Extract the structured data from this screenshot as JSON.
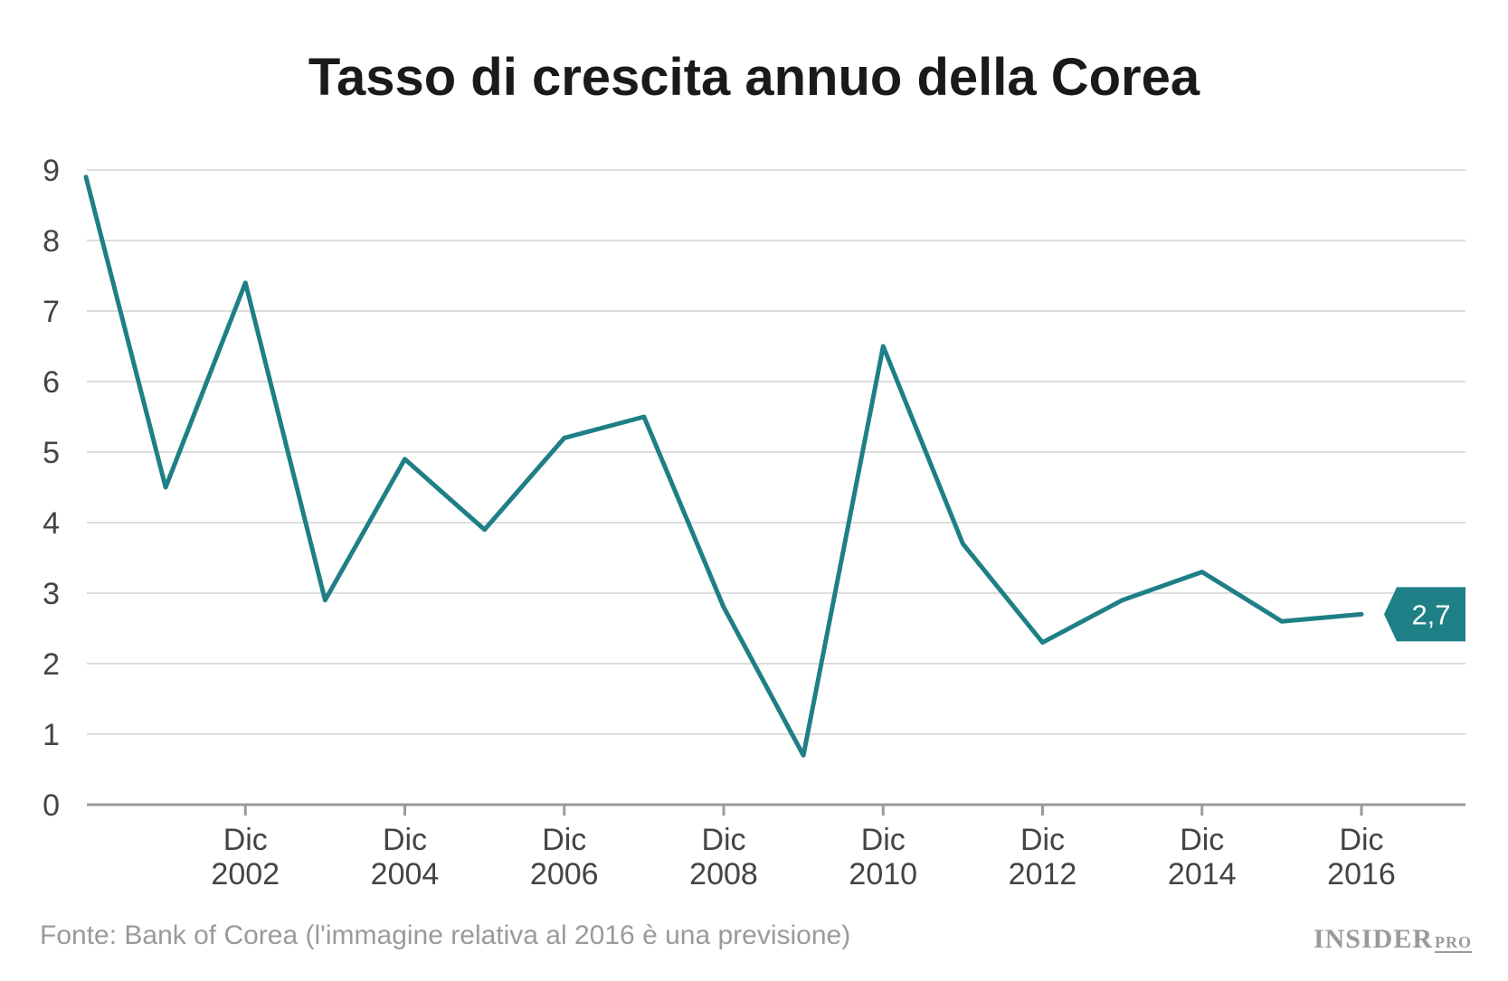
{
  "chart_data": {
    "type": "line",
    "title": "Tasso di crescita annuo della Corea",
    "xlabel": "",
    "ylabel": "",
    "x": [
      2000,
      2001,
      2002,
      2003,
      2004,
      2005,
      2006,
      2007,
      2008,
      2009,
      2010,
      2011,
      2012,
      2013,
      2014,
      2015,
      2016
    ],
    "series": [
      {
        "values": [
          8.9,
          4.5,
          7.4,
          2.9,
          4.9,
          3.9,
          5.2,
          5.5,
          2.8,
          0.7,
          6.5,
          3.7,
          2.3,
          2.9,
          3.3,
          2.6,
          2.7
        ],
        "color": "#1f7f86"
      }
    ],
    "ylim": [
      0,
      9
    ],
    "yticks": [
      "0",
      "1",
      "2",
      "3",
      "4",
      "5",
      "6",
      "7",
      "8",
      "9"
    ],
    "xticks": [
      {
        "x": 2002,
        "line1": "Dic",
        "line2": "2002"
      },
      {
        "x": 2004,
        "line1": "Dic",
        "line2": "2004"
      },
      {
        "x": 2006,
        "line1": "Dic",
        "line2": "2006"
      },
      {
        "x": 2008,
        "line1": "Dic",
        "line2": "2008"
      },
      {
        "x": 2010,
        "line1": "Dic",
        "line2": "2010"
      },
      {
        "x": 2012,
        "line1": "Dic",
        "line2": "2012"
      },
      {
        "x": 2014,
        "line1": "Dic",
        "line2": "2014"
      },
      {
        "x": 2016,
        "line1": "Dic",
        "line2": "2016"
      }
    ],
    "grid": true,
    "last_value_label": "2,7"
  },
  "source": "Fonte: Bank of Corea (l'immagine relativa al 2016 è una previsione)",
  "brand": {
    "name": "INSIDER",
    "suffix": "PRO"
  },
  "colors": {
    "line": "#1f7f86",
    "label_bg": "#1f7f86"
  }
}
